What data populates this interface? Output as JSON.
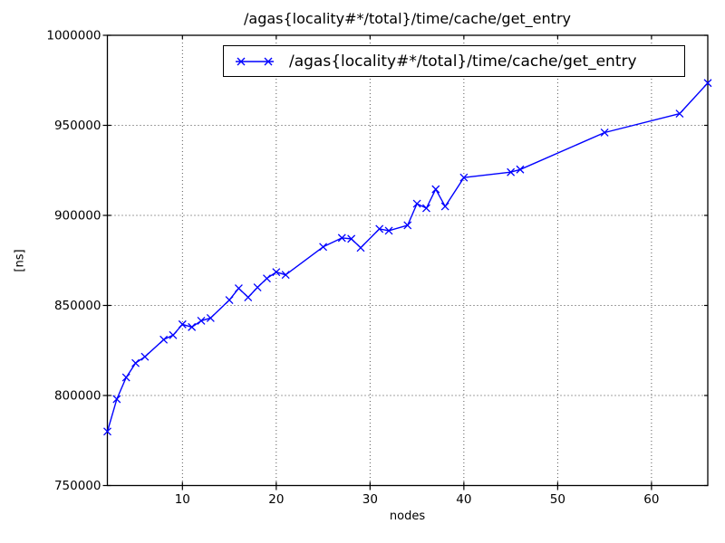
{
  "chart_data": {
    "type": "line",
    "title": "/agas{locality#*/total}/time/cache/get_entry",
    "xlabel": "nodes",
    "ylabel": "[ns]",
    "xlim": [
      2,
      66
    ],
    "ylim": [
      750000,
      1000000
    ],
    "xticks": [
      10,
      20,
      30,
      40,
      50,
      60
    ],
    "yticks": [
      750000,
      800000,
      850000,
      900000,
      950000,
      1000000
    ],
    "grid": true,
    "grid_style": "dotted",
    "legend_position": "upper center",
    "line_color": "#0000ff",
    "marker": "x",
    "series": [
      {
        "name": "/agas{locality#*/total}/time/cache/get_entry",
        "x": [
          2,
          3,
          4,
          5,
          6,
          8,
          9,
          10,
          11,
          12,
          13,
          15,
          16,
          17,
          18,
          19,
          20,
          21,
          25,
          27,
          28,
          29,
          31,
          32,
          34,
          35,
          36,
          37,
          38,
          40,
          45,
          46,
          55,
          63,
          66
        ],
        "y": [
          780000,
          798000,
          810000,
          818000,
          821500,
          831000,
          833500,
          839500,
          838000,
          841500,
          843000,
          853000,
          859500,
          854500,
          860000,
          865000,
          868500,
          867000,
          882500,
          887500,
          887000,
          882000,
          892500,
          891500,
          894500,
          906500,
          904000,
          914500,
          905000,
          921000,
          924000,
          925500,
          946000,
          956500,
          973500
        ]
      }
    ]
  }
}
